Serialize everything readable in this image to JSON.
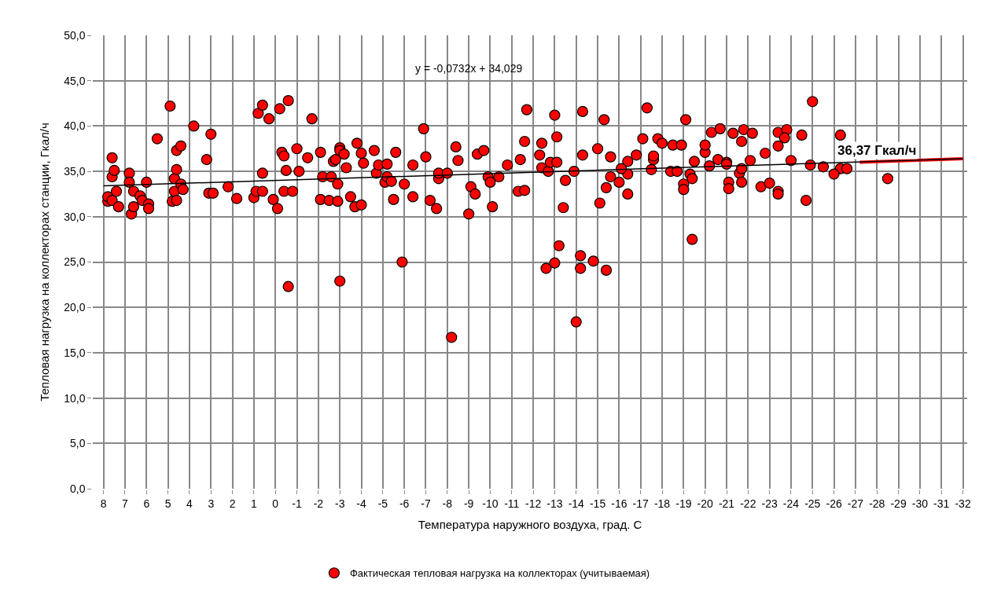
{
  "chart_data": {
    "type": "scatter",
    "xlabel": "Температура наружного воздуха, град. С",
    "ylabel": "Тепловая нагрузка на коллекторах станции, Гкал/ч",
    "xlim": [
      8.5,
      -32.2
    ],
    "xticks": [
      8,
      7,
      6,
      5,
      4,
      3,
      2,
      1,
      0,
      -1,
      -2,
      -3,
      -4,
      -5,
      -6,
      -7,
      -8,
      -9,
      -10,
      -11,
      -12,
      -13,
      -14,
      -15,
      -16,
      -17,
      -18,
      -19,
      -20,
      -21,
      -22,
      -23,
      -24,
      -25,
      -26,
      -27,
      -28,
      -29,
      -30,
      -31,
      -32
    ],
    "ylim": [
      0,
      50
    ],
    "yticks": [
      {
        "value": 0,
        "label": "0,0"
      },
      {
        "value": 5,
        "label": "5,0"
      },
      {
        "value": 10,
        "label": "10,0"
      },
      {
        "value": 15,
        "label": "15,0"
      },
      {
        "value": 20,
        "label": "20,0"
      },
      {
        "value": 25,
        "label": "25,0"
      },
      {
        "value": 30,
        "label": "30,0"
      },
      {
        "value": 35,
        "label": "35,0"
      },
      {
        "value": 40,
        "label": "40,0"
      },
      {
        "value": 45,
        "label": "45,0"
      },
      {
        "value": 50,
        "label": "50,0"
      }
    ],
    "grid": true,
    "legend": "bottom",
    "marker": "circle",
    "annotations": [
      "y = -0,0732x + 34,029",
      {
        "text": "36,37 Гкал/ч",
        "x": -28,
        "y": 36.1
      }
    ],
    "series": [
      {
        "name": "Фактическая тепловая нагрузка на коллекторах (учитываемая)",
        "color": "#ff0000",
        "x": [
          7.8,
          7.8,
          7.6,
          7.6,
          7.6,
          7.5,
          7.4,
          7.3,
          6.8,
          6.8,
          6.7,
          6.6,
          6.6,
          6.3,
          6.2,
          6.0,
          5.9,
          5.9,
          5.5,
          4.9,
          4.8,
          4.7,
          4.7,
          4.6,
          4.6,
          4.4,
          4.6,
          4.4,
          4.3,
          3.8,
          3.2,
          3.1,
          3.0,
          2.9,
          2.2,
          1.8,
          1.0,
          0.9,
          0.8,
          0.6,
          0.6,
          0.6,
          0.3,
          0.1,
          -0.1,
          -0.2,
          -0.3,
          -0.4,
          -0.4,
          -0.5,
          -0.6,
          -0.6,
          -0.8,
          -1.0,
          -1.1,
          -1.5,
          -1.7,
          -2.1,
          -2.1,
          -2.2,
          -2.5,
          -2.6,
          -2.7,
          -2.8,
          -2.9,
          -3.0,
          -3.0,
          -2.9,
          -3.0,
          -3.2,
          -3.3,
          -3.5,
          -3.7,
          -3.8,
          -4.0,
          -4.0,
          -4.1,
          -4.6,
          -4.7,
          -4.8,
          -5.1,
          -5.2,
          -5.2,
          -5.4,
          -5.5,
          -5.6,
          -5.9,
          -6.0,
          -6.4,
          -6.4,
          -6.9,
          -7.0,
          -7.2,
          -7.5,
          -7.6,
          -7.6,
          -8.0,
          -8.2,
          -8.4,
          -8.5,
          -9.0,
          -9.1,
          -9.3,
          -9.4,
          -9.7,
          -9.9,
          -10.0,
          -10.1,
          -10.4,
          -10.8,
          -11.3,
          -11.4,
          -11.6,
          -11.7,
          -11.6,
          -12.4,
          -12.3,
          -13.0,
          -13.1,
          -12.4,
          -12.7,
          -12.8,
          -13.1,
          -13.5,
          -13.4,
          -14.3,
          -15.3,
          -14.3,
          -15.0,
          -13.9,
          -15.6,
          -15.4,
          -15.6,
          -16.0,
          -15.1,
          -16.4,
          -16.4,
          -16.4,
          -16.1,
          -16.8,
          -17.1,
          -17.3,
          -17.6,
          -17.6,
          -17.5,
          -17.8,
          -18.0,
          -18.5,
          -18.9,
          -18.4,
          -18.7,
          -19.1,
          -19.0,
          -19.0,
          -19.3,
          -19.4,
          -19.4,
          -19.5,
          -20.0,
          -20.0,
          -20.3,
          -20.2,
          -20.6,
          -20.7,
          -21.0,
          -21.0,
          -21.1,
          -21.1,
          -21.3,
          -21.7,
          -21.6,
          -21.7,
          -21.7,
          -21.8,
          -22.2,
          -22.1,
          -22.6,
          -13.2,
          -13.0,
          -12.6,
          -14.2,
          -14.2,
          -14.8,
          -15.4,
          -14.0,
          -23.4,
          -23.8,
          -23.7,
          -23.4,
          -22.8,
          -24.5,
          -25.0,
          -24.0,
          -24.9,
          -25.5,
          -26.3,
          -26.6,
          -26.0,
          -28.5,
          -26.3,
          -23.0,
          -23.4,
          -23.4,
          -24.7
        ],
        "values": [
          31.7,
          32.2,
          31.8,
          34.4,
          36.5,
          35.1,
          32.8,
          31.1,
          34.8,
          33.8,
          30.3,
          31.1,
          32.8,
          32.3,
          31.8,
          33.8,
          31.4,
          30.9,
          38.6,
          42.2,
          31.7,
          32.8,
          34.2,
          35.2,
          37.3,
          37.8,
          31.8,
          33.6,
          33.0,
          40.0,
          36.3,
          32.6,
          39.1,
          32.6,
          33.3,
          32.0,
          32.1,
          32.8,
          41.4,
          42.3,
          32.8,
          34.8,
          40.8,
          31.9,
          30.9,
          41.9,
          37.1,
          36.7,
          32.8,
          35.1,
          42.8,
          22.3,
          32.8,
          37.5,
          35.0,
          36.5,
          40.8,
          37.1,
          31.9,
          34.4,
          31.8,
          34.4,
          36.1,
          36.3,
          31.7,
          37.6,
          37.3,
          33.6,
          22.9,
          36.9,
          35.4,
          32.2,
          31.1,
          38.1,
          31.3,
          37.0,
          35.9,
          37.3,
          34.8,
          35.7,
          33.8,
          35.8,
          34.4,
          33.9,
          31.9,
          37.1,
          25.0,
          33.6,
          35.7,
          32.2,
          39.7,
          36.6,
          31.8,
          30.9,
          34.2,
          34.8,
          34.8,
          16.7,
          37.7,
          36.2,
          30.3,
          33.3,
          32.5,
          36.9,
          37.3,
          34.4,
          33.8,
          31.1,
          34.4,
          35.7,
          32.8,
          36.3,
          38.3,
          41.8,
          32.9,
          38.1,
          36.8,
          41.2,
          38.8,
          35.4,
          35.0,
          36.0,
          36.0,
          34.0,
          31.0,
          41.6,
          40.7,
          36.8,
          37.5,
          35.0,
          36.6,
          33.2,
          34.4,
          33.8,
          31.5,
          34.7,
          32.5,
          36.1,
          35.3,
          36.8,
          38.6,
          42.0,
          36.3,
          36.7,
          35.2,
          38.6,
          38.1,
          37.9,
          37.9,
          35.0,
          35.0,
          40.7,
          33.6,
          33.0,
          34.7,
          34.2,
          27.5,
          36.1,
          37.1,
          37.9,
          39.3,
          35.6,
          36.3,
          39.7,
          36.0,
          35.8,
          33.8,
          33.1,
          39.2,
          38.3,
          34.8,
          35.3,
          33.8,
          39.6,
          39.2,
          36.2,
          33.3,
          26.8,
          24.9,
          24.3,
          25.7,
          24.3,
          25.1,
          24.1,
          18.4,
          39.3,
          39.6,
          38.7,
          37.8,
          37.0,
          39.0,
          42.7,
          36.2,
          35.7,
          35.5,
          35.3,
          35.3,
          34.7,
          34.2,
          39.0,
          33.7,
          32.8,
          32.5,
          31.8
        ]
      },
      {
        "type": "line",
        "marker": "none",
        "color": "#000000",
        "x": [
          8,
          -32
        ],
        "values": [
          33.4,
          36.4
        ]
      },
      {
        "type": "line",
        "marker": "none",
        "color": "#ff0000",
        "x": [
          -27.2,
          -32
        ],
        "values": [
          36.0,
          36.4
        ]
      }
    ]
  }
}
